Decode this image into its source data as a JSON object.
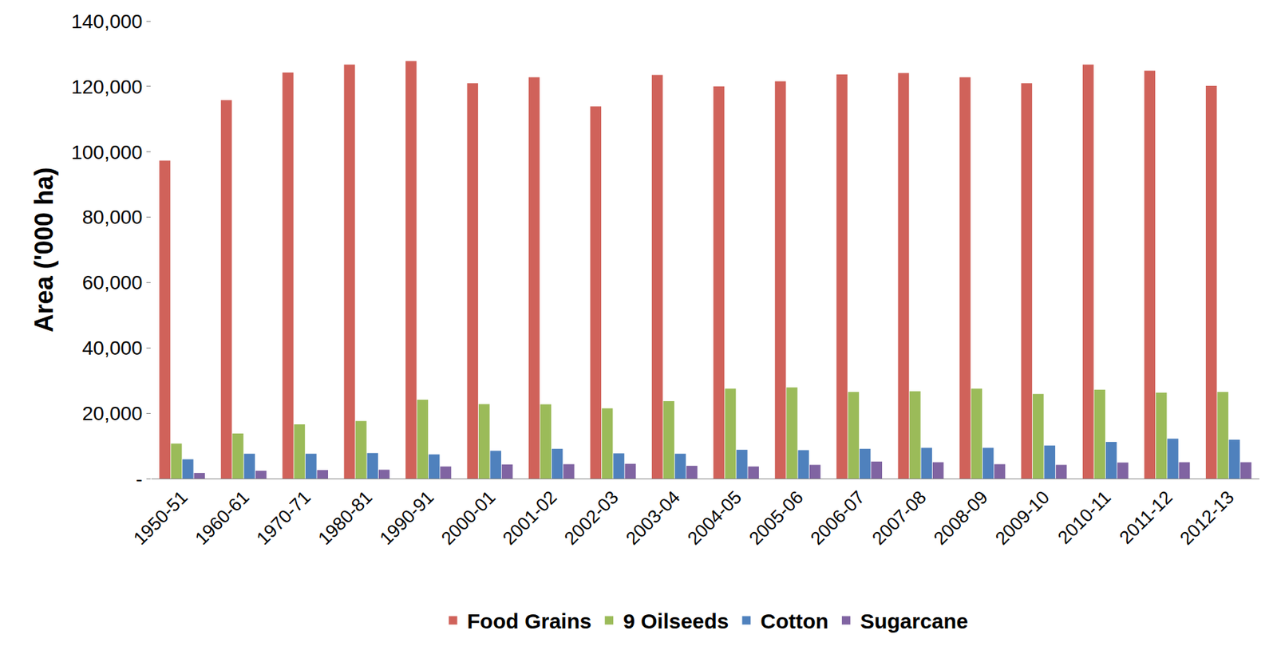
{
  "chart_data": {
    "type": "bar",
    "y_label": "Area ('000 ha)",
    "categories": [
      "1950-51",
      "1960-61",
      "1970-71",
      "1980-81",
      "1990-91",
      "2000-01",
      "2001-02",
      "2002-03",
      "2003-04",
      "2004-05",
      "2005-06",
      "2006-07",
      "2007-08",
      "2008-09",
      "2009-10",
      "2010-11",
      "2011-12",
      "2012-13"
    ],
    "series": [
      {
        "name": "Food Grains",
        "color": "#d0625a",
        "values": [
          97300,
          115800,
          124300,
          126700,
          127800,
          121000,
          122800,
          113900,
          123500,
          120000,
          121600,
          123700,
          124100,
          122800,
          121000,
          126700,
          124800,
          120200
        ]
      },
      {
        "name": "9 Oilseeds",
        "color": "#9bbb59",
        "values": [
          10700,
          13800,
          16600,
          17600,
          24100,
          22800,
          22700,
          21500,
          23700,
          27500,
          27900,
          26500,
          26700,
          27500,
          25900,
          27200,
          26300,
          26500
        ]
      },
      {
        "name": "Cotton",
        "color": "#4f81bd",
        "values": [
          5900,
          7600,
          7600,
          7800,
          7400,
          8500,
          9100,
          7700,
          7600,
          8800,
          8700,
          9100,
          9400,
          9400,
          10100,
          11200,
          12200,
          11900
        ]
      },
      {
        "name": "Sugarcane",
        "color": "#8064a2",
        "values": [
          1700,
          2400,
          2600,
          2700,
          3700,
          4300,
          4400,
          4500,
          3900,
          3700,
          4200,
          5200,
          5000,
          4400,
          4200,
          4900,
          5000,
          5000
        ]
      }
    ],
    "ylim": [
      0,
      140000
    ],
    "yticks": [
      {
        "value": 0,
        "label": "-"
      },
      {
        "value": 20000,
        "label": "20,000"
      },
      {
        "value": 40000,
        "label": "40,000"
      },
      {
        "value": 60000,
        "label": "60,000"
      },
      {
        "value": 80000,
        "label": "80,000"
      },
      {
        "value": 100000,
        "label": "100,000"
      },
      {
        "value": 120000,
        "label": "120,000"
      },
      {
        "value": 140000,
        "label": "140,000"
      }
    ],
    "grid": false,
    "legend": "bottom"
  }
}
